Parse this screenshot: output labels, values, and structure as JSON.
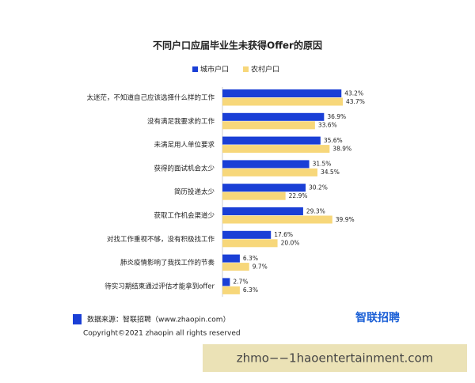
{
  "chart_data": {
    "type": "bar",
    "orientation": "horizontal",
    "title": "不同户口应届毕业生未获得Offer的原因",
    "categories": [
      "太迷茫，不知道自己应该选择什么样的工作",
      "没有满足我要求的工作",
      "未满足用人单位要求",
      "获得的面试机会太少",
      "简历投递太少",
      "获取工作机会渠道少",
      "对找工作重视不够，没有积极找工作",
      "肺炎疫情影响了我找工作的节奏",
      "待实习期结束通过评估才能拿到offer"
    ],
    "series": [
      {
        "name": "城市户口",
        "color": "#1a3fd6",
        "values": [
          43.2,
          36.9,
          35.6,
          31.5,
          30.2,
          29.3,
          17.6,
          6.3,
          2.7
        ],
        "value_labels": [
          "43.2%",
          "36.9%",
          "35.6%",
          "31.5%",
          "30.2%",
          "29.3%",
          "17.6%",
          "6.3%",
          "2.7%"
        ]
      },
      {
        "name": "农村户口",
        "color": "#f7d77a",
        "values": [
          43.7,
          33.6,
          38.9,
          34.5,
          22.9,
          39.9,
          20.0,
          9.7,
          6.3
        ],
        "value_labels": [
          "43.7%",
          "33.6%",
          "38.9%",
          "34.5%",
          "22.9%",
          "39.9%",
          "20.0%",
          "9.7%",
          "6.3%"
        ]
      }
    ],
    "legend": "top"
  },
  "footer": {
    "source": "数据来源：智联招聘（www.zhaopin.com）",
    "logo": "智联招聘",
    "copyright": "Copyright©2021 zhaopin all rights reserved"
  },
  "watermark": "zhmo−−1haoentertainment.com"
}
